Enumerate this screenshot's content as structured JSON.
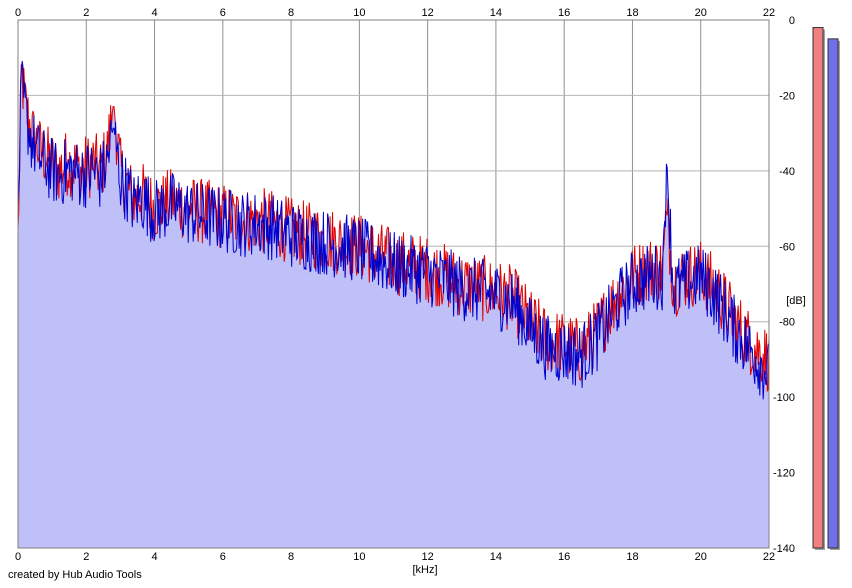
{
  "chart_data": {
    "type": "area",
    "xlabel": "[kHz]",
    "ylabel": "[dB]",
    "xlim": [
      0,
      22
    ],
    "ylim": [
      -140,
      0
    ],
    "x_ticks": [
      "0",
      "2",
      "4",
      "6",
      "8",
      "10",
      "12",
      "14",
      "16",
      "18",
      "20",
      "22"
    ],
    "y_ticks": [
      "0",
      "-20",
      "-40",
      "-60",
      "-80",
      "-100",
      "-120",
      "-140"
    ],
    "grid": true,
    "series": [
      {
        "color": "#e00000",
        "x": [
          0,
          0.1,
          0.2,
          0.4,
          0.6,
          0.8,
          1.0,
          1.2,
          1.4,
          1.6,
          1.8,
          2.0,
          2.2,
          2.4,
          2.6,
          2.8,
          3.0,
          3.2,
          3.4,
          3.6,
          3.8,
          4.0,
          4.5,
          5.0,
          5.5,
          6.0,
          6.5,
          7.0,
          7.5,
          8.0,
          8.5,
          9.0,
          9.5,
          10.0,
          10.5,
          11.0,
          11.5,
          12.0,
          12.5,
          13.0,
          13.5,
          14.0,
          14.5,
          15.0,
          15.5,
          16.0,
          16.5,
          17.0,
          17.5,
          18.0,
          18.5,
          18.9,
          19.0,
          19.2,
          19.5,
          20.0,
          20.5,
          21.0,
          21.5,
          22.0
        ],
        "y": [
          -58,
          -14,
          -22,
          -30,
          -34,
          -36,
          -38,
          -40,
          -38,
          -38,
          -40,
          -39,
          -38,
          -40,
          -36,
          -22,
          -40,
          -44,
          -48,
          -46,
          -48,
          -50,
          -48,
          -50,
          -51,
          -52,
          -53,
          -53,
          -54,
          -56,
          -57,
          -58,
          -59,
          -60,
          -62,
          -64,
          -65,
          -66,
          -68,
          -70,
          -71,
          -72,
          -74,
          -80,
          -85,
          -86,
          -88,
          -82,
          -74,
          -68,
          -66,
          -66,
          -50,
          -70,
          -68,
          -67,
          -72,
          -80,
          -86,
          -90
        ]
      },
      {
        "color": "#0000cc",
        "x": [
          0,
          0.1,
          0.2,
          0.4,
          0.6,
          0.8,
          1.0,
          1.2,
          1.4,
          1.6,
          1.8,
          2.0,
          2.2,
          2.4,
          2.6,
          2.8,
          3.0,
          3.2,
          3.4,
          3.6,
          3.8,
          4.0,
          4.5,
          5.0,
          5.5,
          6.0,
          6.5,
          7.0,
          7.5,
          8.0,
          8.5,
          9.0,
          9.5,
          10.0,
          10.5,
          11.0,
          11.5,
          12.0,
          12.5,
          13.0,
          13.5,
          14.0,
          14.5,
          15.0,
          15.5,
          16.0,
          16.5,
          17.0,
          17.5,
          18.0,
          18.5,
          18.9,
          19.0,
          19.2,
          19.5,
          20.0,
          20.5,
          21.0,
          21.5,
          22.0
        ],
        "y": [
          -52,
          -18,
          -24,
          -32,
          -36,
          -38,
          -40,
          -41,
          -40,
          -40,
          -41,
          -41,
          -40,
          -42,
          -38,
          -28,
          -42,
          -45,
          -49,
          -47,
          -49,
          -51,
          -49,
          -51,
          -52,
          -53,
          -54,
          -54,
          -55,
          -57,
          -58,
          -59,
          -60,
          -61,
          -63,
          -65,
          -66,
          -67,
          -69,
          -71,
          -72,
          -73,
          -75,
          -82,
          -87,
          -88,
          -89,
          -84,
          -76,
          -70,
          -68,
          -68,
          -36,
          -72,
          -70,
          -68,
          -74,
          -82,
          -88,
          -94
        ]
      }
    ],
    "level_meters": [
      {
        "color": "#f08080",
        "level_db": -2
      },
      {
        "color": "#7070e8",
        "level_db": -5
      }
    ]
  },
  "footer": {
    "credit": "created by Hub Audio Tools"
  }
}
